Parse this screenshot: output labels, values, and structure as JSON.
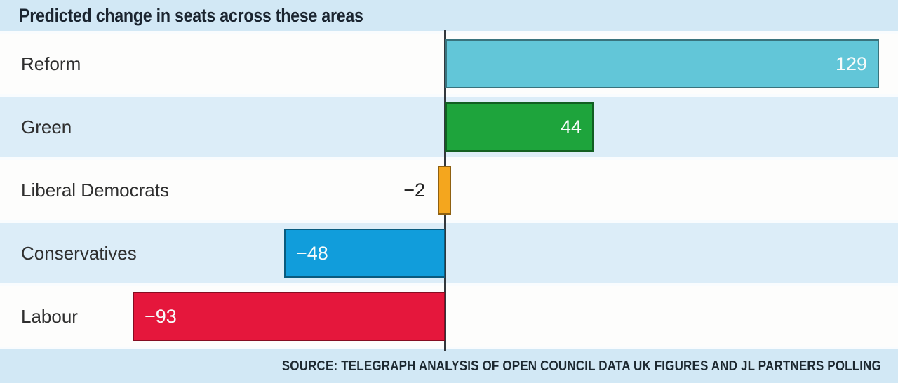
{
  "chart_data": {
    "type": "bar",
    "orientation": "horizontal",
    "title": "Predicted change in seats across these areas",
    "categories": [
      "Reform",
      "Green",
      "Liberal Democrats",
      "Conservatives",
      "Labour"
    ],
    "values": [
      129,
      44,
      -2,
      -48,
      -93
    ],
    "value_labels": [
      "129",
      "44",
      "−2",
      "−48",
      "−93"
    ],
    "bar_colors": [
      "#62c6d8",
      "#1ea43c",
      "#f4a61e",
      "#119ddb",
      "#e5173c"
    ],
    "row_pattern": [
      "white",
      "alt",
      "white",
      "alt",
      "white"
    ],
    "xlim": [
      -135,
      135
    ],
    "grid": false,
    "legend": false,
    "zero_axis": true,
    "xlabel": "",
    "ylabel": "",
    "source": "SOURCE: TELEGRAPH ANALYSIS OF OPEN COUNCIL DATA UK FIGURES AND JL PARTNERS POLLING"
  },
  "colors": {
    "band_background": "#d2e8f5",
    "row_alt_background": "#dcedf8",
    "row_background": "#fdfdfc",
    "axis_line": "#33383d",
    "title_text": "#1b2530",
    "category_text": "#2f2f2f",
    "value_inside_text": "#f7fbfa",
    "value_outside_text": "#1f1f1f"
  }
}
